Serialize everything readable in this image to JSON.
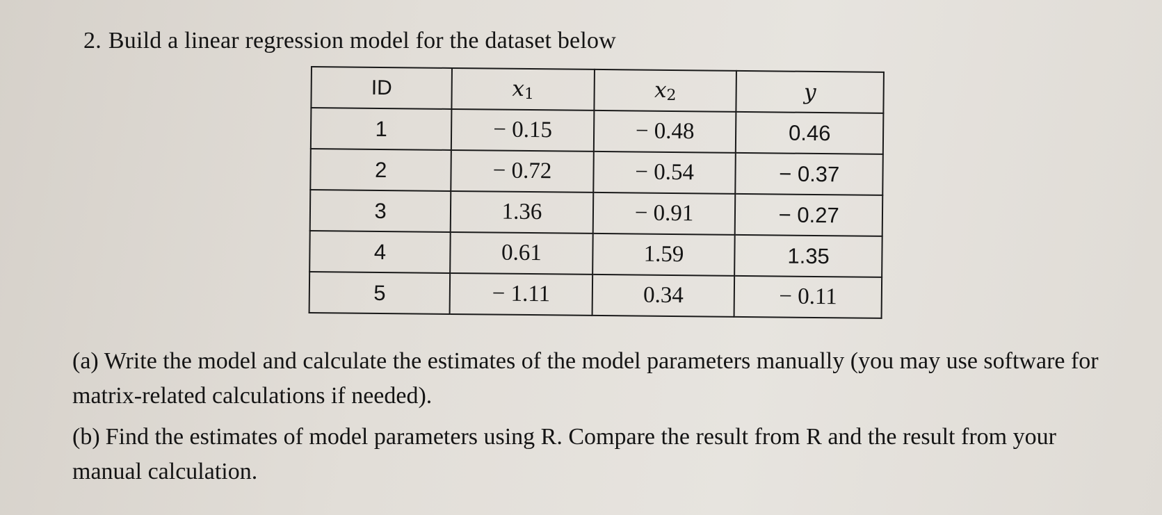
{
  "question": {
    "number": "2.",
    "text": "Build a linear regression model for the dataset below"
  },
  "table": {
    "headers": {
      "id": "ID",
      "x1_var": "x",
      "x1_sub": "1",
      "x2_var": "x",
      "x2_sub": "2",
      "y_var": "y"
    },
    "rows": [
      {
        "id": "1",
        "x1": "− 0.15",
        "x2": "− 0.48",
        "y": "0.46"
      },
      {
        "id": "2",
        "x1": "− 0.72",
        "x2": "− 0.54",
        "y": "− 0.37"
      },
      {
        "id": "3",
        "x1": "1.36",
        "x2": "− 0.91",
        "y": "− 0.27"
      },
      {
        "id": "4",
        "x1": "0.61",
        "x2": "1.59",
        "y": "1.35"
      },
      {
        "id": "5",
        "x1": "− 1.11",
        "x2": "0.34",
        "y": "− 0.11"
      }
    ]
  },
  "parts": {
    "a": {
      "label": "(a)",
      "text": "Write the model and calculate the estimates of the model parameters manually (you may use software for matrix-related calculations if needed)."
    },
    "b": {
      "label": "(b)",
      "text": "Find the estimates of model parameters using R. Compare the result from R and the result from your manual calculation."
    }
  }
}
